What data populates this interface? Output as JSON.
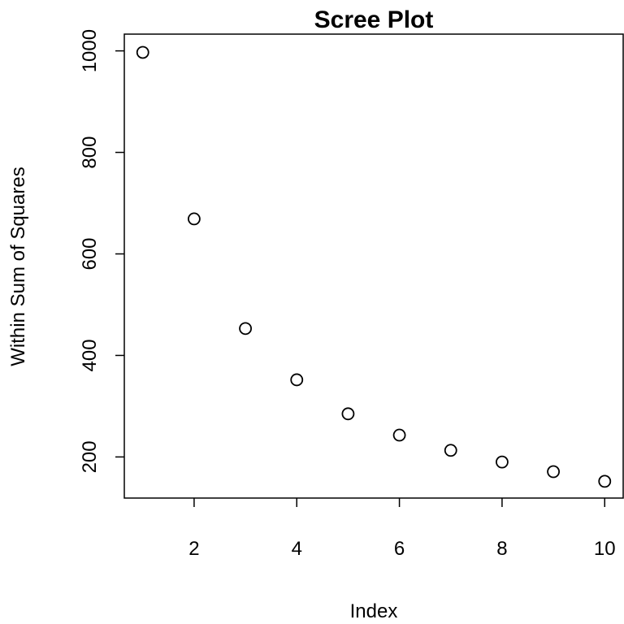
{
  "chart_data": {
    "type": "scatter",
    "title": "Scree Plot",
    "xlabel": "Index",
    "ylabel": "Within Sum of Squares",
    "x": [
      1,
      2,
      3,
      4,
      5,
      6,
      7,
      8,
      9,
      10
    ],
    "values": [
      997,
      669,
      453,
      352,
      285,
      243,
      213,
      190,
      171,
      152
    ],
    "color": "#000000",
    "xlim": [
      0.64,
      10.36
    ],
    "xticks": [
      2,
      4,
      6,
      8,
      10
    ],
    "ylim": [
      119,
      1033
    ],
    "yticks": [
      200,
      400,
      600,
      800,
      1000
    ],
    "grid": false
  }
}
